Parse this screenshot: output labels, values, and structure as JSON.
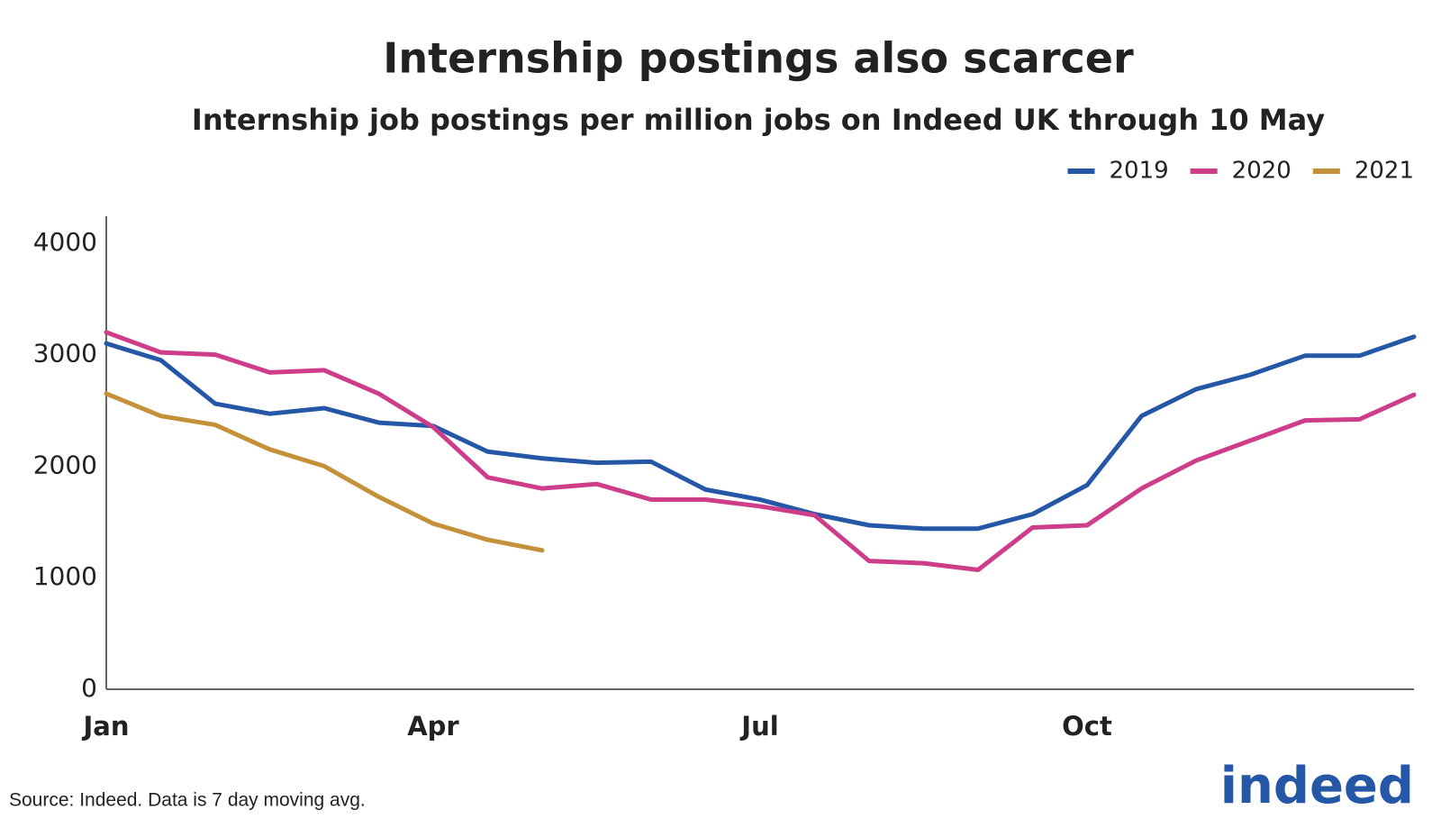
{
  "chart_data": {
    "type": "line",
    "title": "Internship postings also scarcer",
    "subtitle": "Internship job postings per million jobs on Indeed UK through 10 May",
    "source": "Source: Indeed. Data is 7 day moving avg.",
    "logo": "indeed",
    "categories": [
      "Jan",
      null,
      null,
      null,
      null,
      null,
      "Apr",
      null,
      null,
      null,
      null,
      null,
      "Jul",
      null,
      null,
      null,
      null,
      null,
      "Oct",
      null,
      null,
      null,
      null,
      null,
      null
    ],
    "series": [
      {
        "name": "2019",
        "color": "#2557a7",
        "values": [
          3100,
          2950,
          2560,
          2470,
          2520,
          2390,
          2360,
          2130,
          2070,
          2030,
          2040,
          1790,
          1700,
          1570,
          1470,
          1440,
          1440,
          1570,
          1830,
          2450,
          2690,
          2820,
          2990,
          2990,
          3160
        ]
      },
      {
        "name": "2020",
        "color": "#cd3d8a",
        "values": [
          3200,
          3020,
          3000,
          2840,
          2860,
          2650,
          2350,
          1900,
          1800,
          1840,
          1700,
          1700,
          1640,
          1560,
          1150,
          1130,
          1070,
          1450,
          1470,
          1800,
          2050,
          2230,
          2410,
          2420,
          2640
        ]
      },
      {
        "name": "2021",
        "color": "#c4913a",
        "values": [
          2650,
          2450,
          2370,
          2150,
          2000,
          1725,
          1485,
          1340,
          1245,
          null,
          null,
          null,
          null,
          null,
          null,
          null,
          null,
          null,
          null,
          null,
          null,
          null,
          null,
          null,
          null
        ]
      }
    ],
    "ylim": [
      0,
      4200
    ],
    "yticks": [
      0,
      1000,
      2000,
      3000,
      4000
    ],
    "grid": false,
    "legend": "top-right"
  }
}
